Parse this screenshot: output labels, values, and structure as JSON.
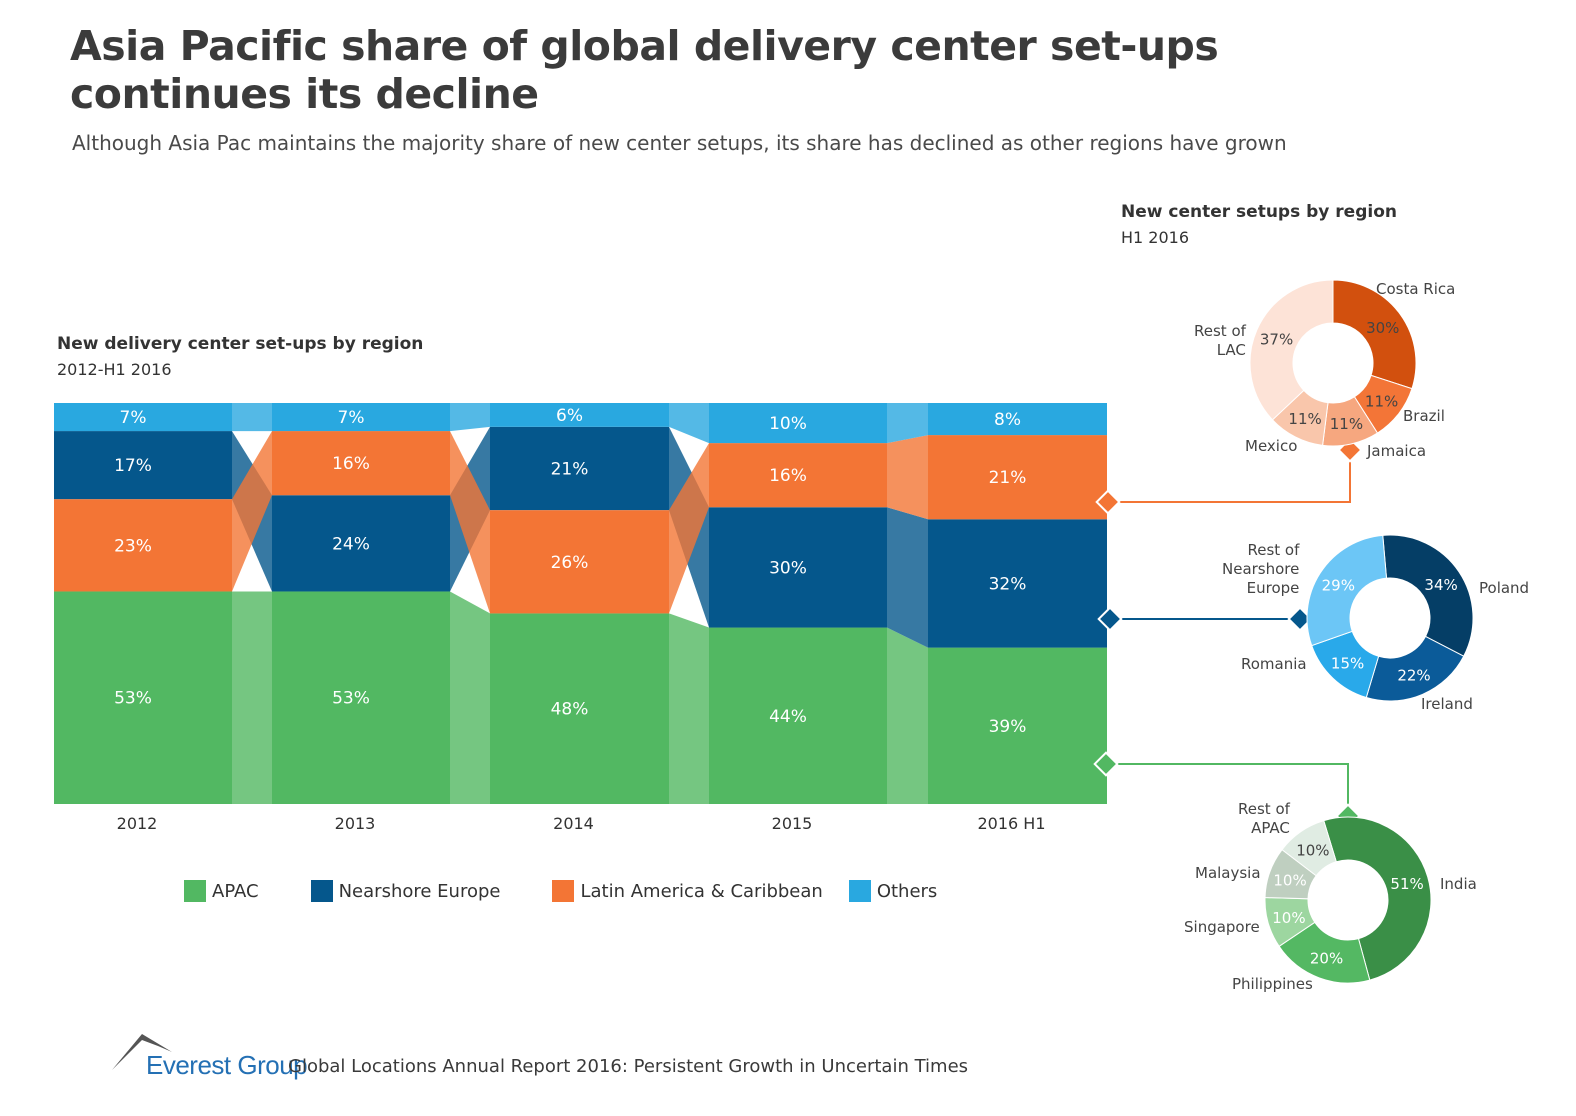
{
  "title": "Asia Pacific share of global delivery center set-ups continues its decline",
  "subtitle": "Although Asia Pac maintains the majority share of new center setups, its share has declined as other regions have grown",
  "footer": {
    "brand": "Everest Group",
    "report": "Global Locations Annual Report 2016: Persistent Growth in Uncertain Times"
  },
  "chart_data": [
    {
      "type": "bar",
      "stacked": true,
      "title": "New delivery center set-ups by region",
      "subtitle": "2012-H1 2016",
      "categories": [
        "2012",
        "2013",
        "2014",
        "2015",
        "2016 H1"
      ],
      "ylim": [
        0,
        100
      ],
      "unit": "%",
      "legend_position": "bottom",
      "series": [
        {
          "name": "APAC",
          "color": "#52b862",
          "values": [
            53,
            53,
            48,
            44,
            39
          ]
        },
        {
          "name": "Nearshore Europe",
          "color": "#05578c",
          "values": [
            17,
            24,
            21,
            30,
            32
          ]
        },
        {
          "name": "Latin America & Caribbean",
          "color": "#f37535",
          "values": [
            23,
            16,
            26,
            16,
            21
          ]
        },
        {
          "name": "Others",
          "color": "#29a8e0",
          "values": [
            7,
            7,
            6,
            10,
            8
          ]
        }
      ]
    },
    {
      "type": "pie",
      "donut": true,
      "title": "New center setups by region",
      "subtitle": "H1 2016",
      "links_to_series": "Latin America & Caribbean",
      "slices": [
        {
          "label": "Costa Rica",
          "value": 30,
          "color": "#d2500e"
        },
        {
          "label": "Brazil",
          "value": 11,
          "color": "#f37537"
        },
        {
          "label": "Jamaica",
          "value": 11,
          "color": "#f6a77f"
        },
        {
          "label": "Mexico",
          "value": 11,
          "color": "#f9c6ab"
        },
        {
          "label": "Rest of LAC",
          "value": 37,
          "color": "#fde3d7"
        }
      ]
    },
    {
      "type": "pie",
      "donut": true,
      "links_to_series": "Nearshore Europe",
      "slices": [
        {
          "label": "Poland",
          "value": 34,
          "color": "#053e66"
        },
        {
          "label": "Ireland",
          "value": 22,
          "color": "#0b5b99"
        },
        {
          "label": "Romania",
          "value": 15,
          "color": "#29a9ea"
        },
        {
          "label": "Rest of Nearshore Europe",
          "value": 29,
          "color": "#6cc6f6"
        }
      ]
    },
    {
      "type": "pie",
      "donut": true,
      "links_to_series": "APAC",
      "slices": [
        {
          "label": "India",
          "value": 51,
          "color": "#3a8f47"
        },
        {
          "label": "Philippines",
          "value": 20,
          "color": "#54b863"
        },
        {
          "label": "Singapore",
          "value": 10,
          "color": "#9dd6a0"
        },
        {
          "label": "Malaysia",
          "value": 10,
          "color": "#bfcfc0"
        },
        {
          "label": "Rest of APAC",
          "value": 10,
          "color": "#e0ece3"
        }
      ]
    }
  ]
}
